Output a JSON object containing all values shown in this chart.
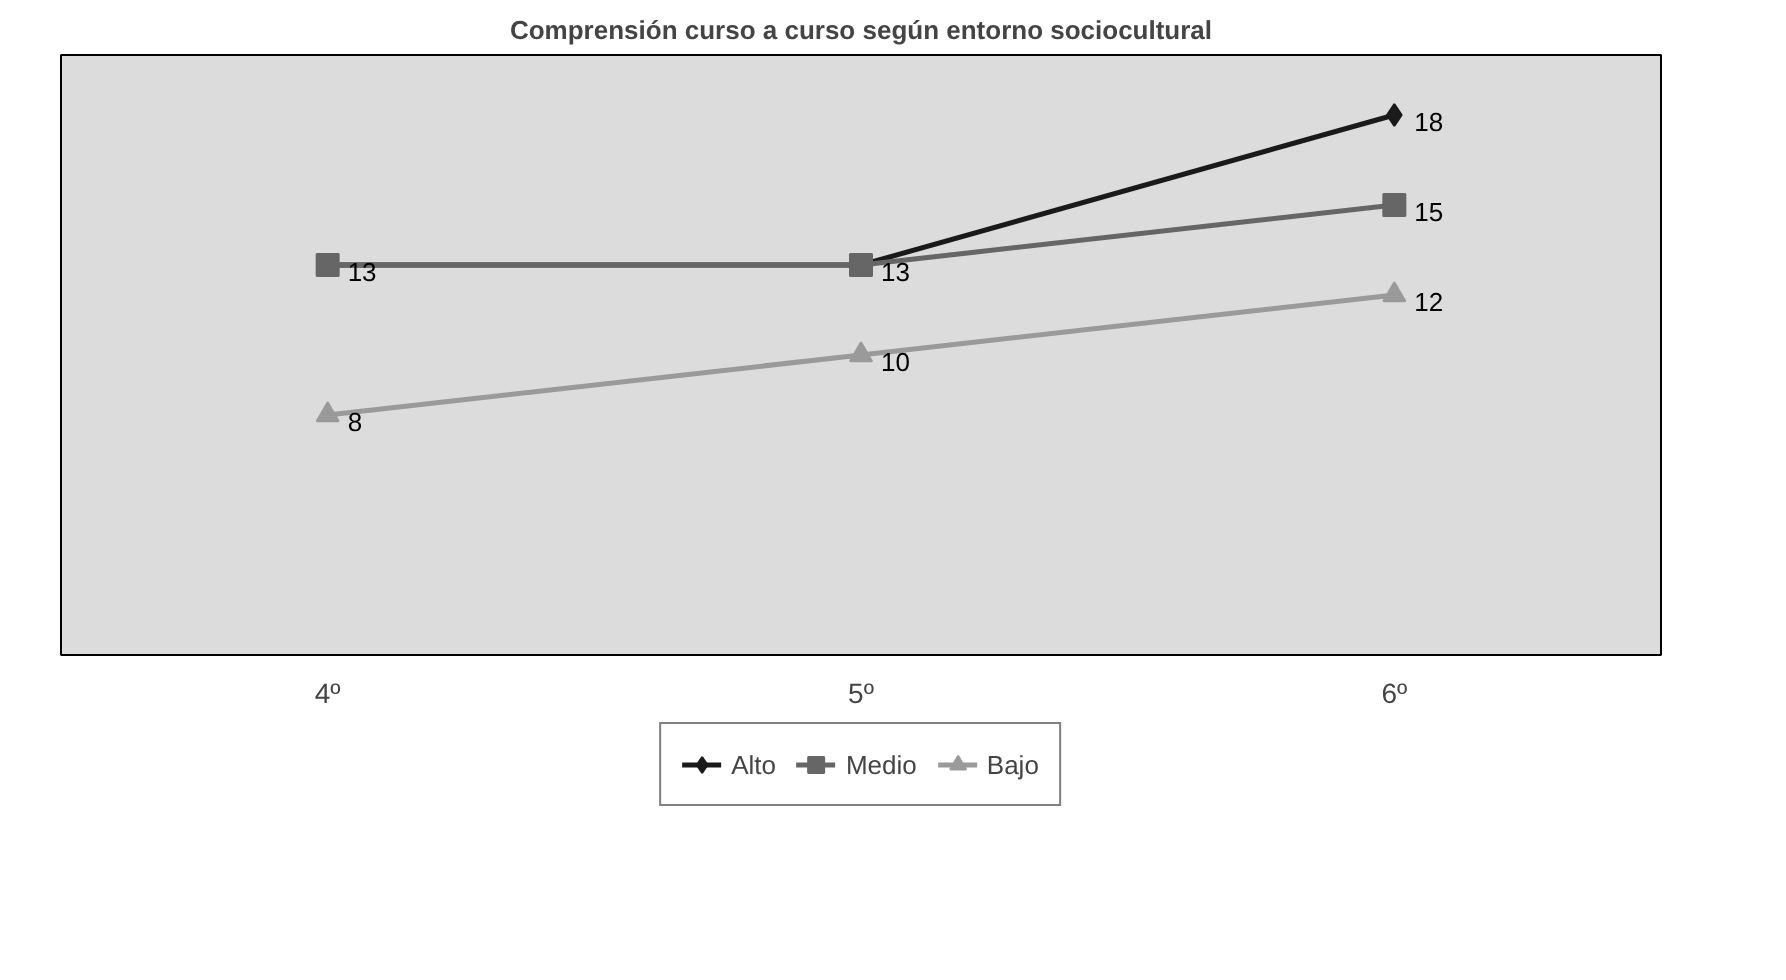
{
  "chart_data": {
    "type": "line",
    "title": "Comprensión curso a curso según entorno sociocultural",
    "categories": [
      "4º",
      "5º",
      "6º"
    ],
    "series": [
      {
        "name": "Alto",
        "color": "#1a1a1a",
        "marker": "diamond",
        "values": [
          13,
          13,
          18
        ],
        "value_labels": [
          null,
          null,
          "18"
        ]
      },
      {
        "name": "Medio",
        "color": "#666666",
        "marker": "square",
        "values": [
          13,
          13,
          15
        ],
        "value_labels": [
          "13",
          "13",
          "15"
        ]
      },
      {
        "name": "Bajo",
        "color": "#9a9a9a",
        "marker": "triangle",
        "values": [
          8,
          10,
          12
        ],
        "value_labels": [
          "8",
          "10",
          "12"
        ]
      }
    ],
    "ylim": [
      0,
      20
    ],
    "tick_labels": "x",
    "grid": false,
    "legend": "bottom"
  }
}
